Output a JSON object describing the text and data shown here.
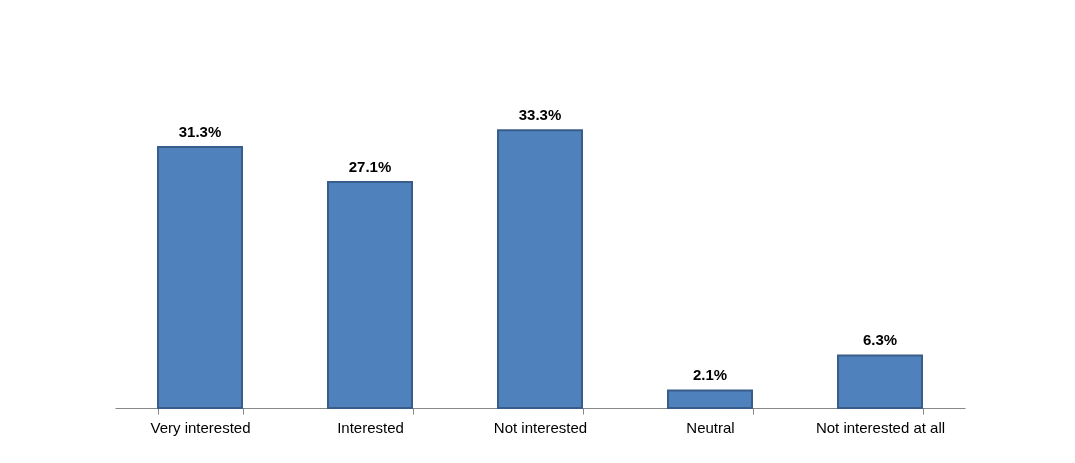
{
  "chart_data": {
    "type": "bar",
    "categories": [
      "Very interested",
      "Interested",
      "Not interested",
      "Neutral",
      "Not interested at all"
    ],
    "values": [
      31.3,
      27.1,
      33.3,
      2.1,
      6.3
    ],
    "color": "#4f81bd",
    "data_labels": true,
    "value_labels": [
      "31.3%",
      "27.1%",
      "33.3%",
      "2.1%",
      "6.3%"
    ],
    "grid": false
  }
}
